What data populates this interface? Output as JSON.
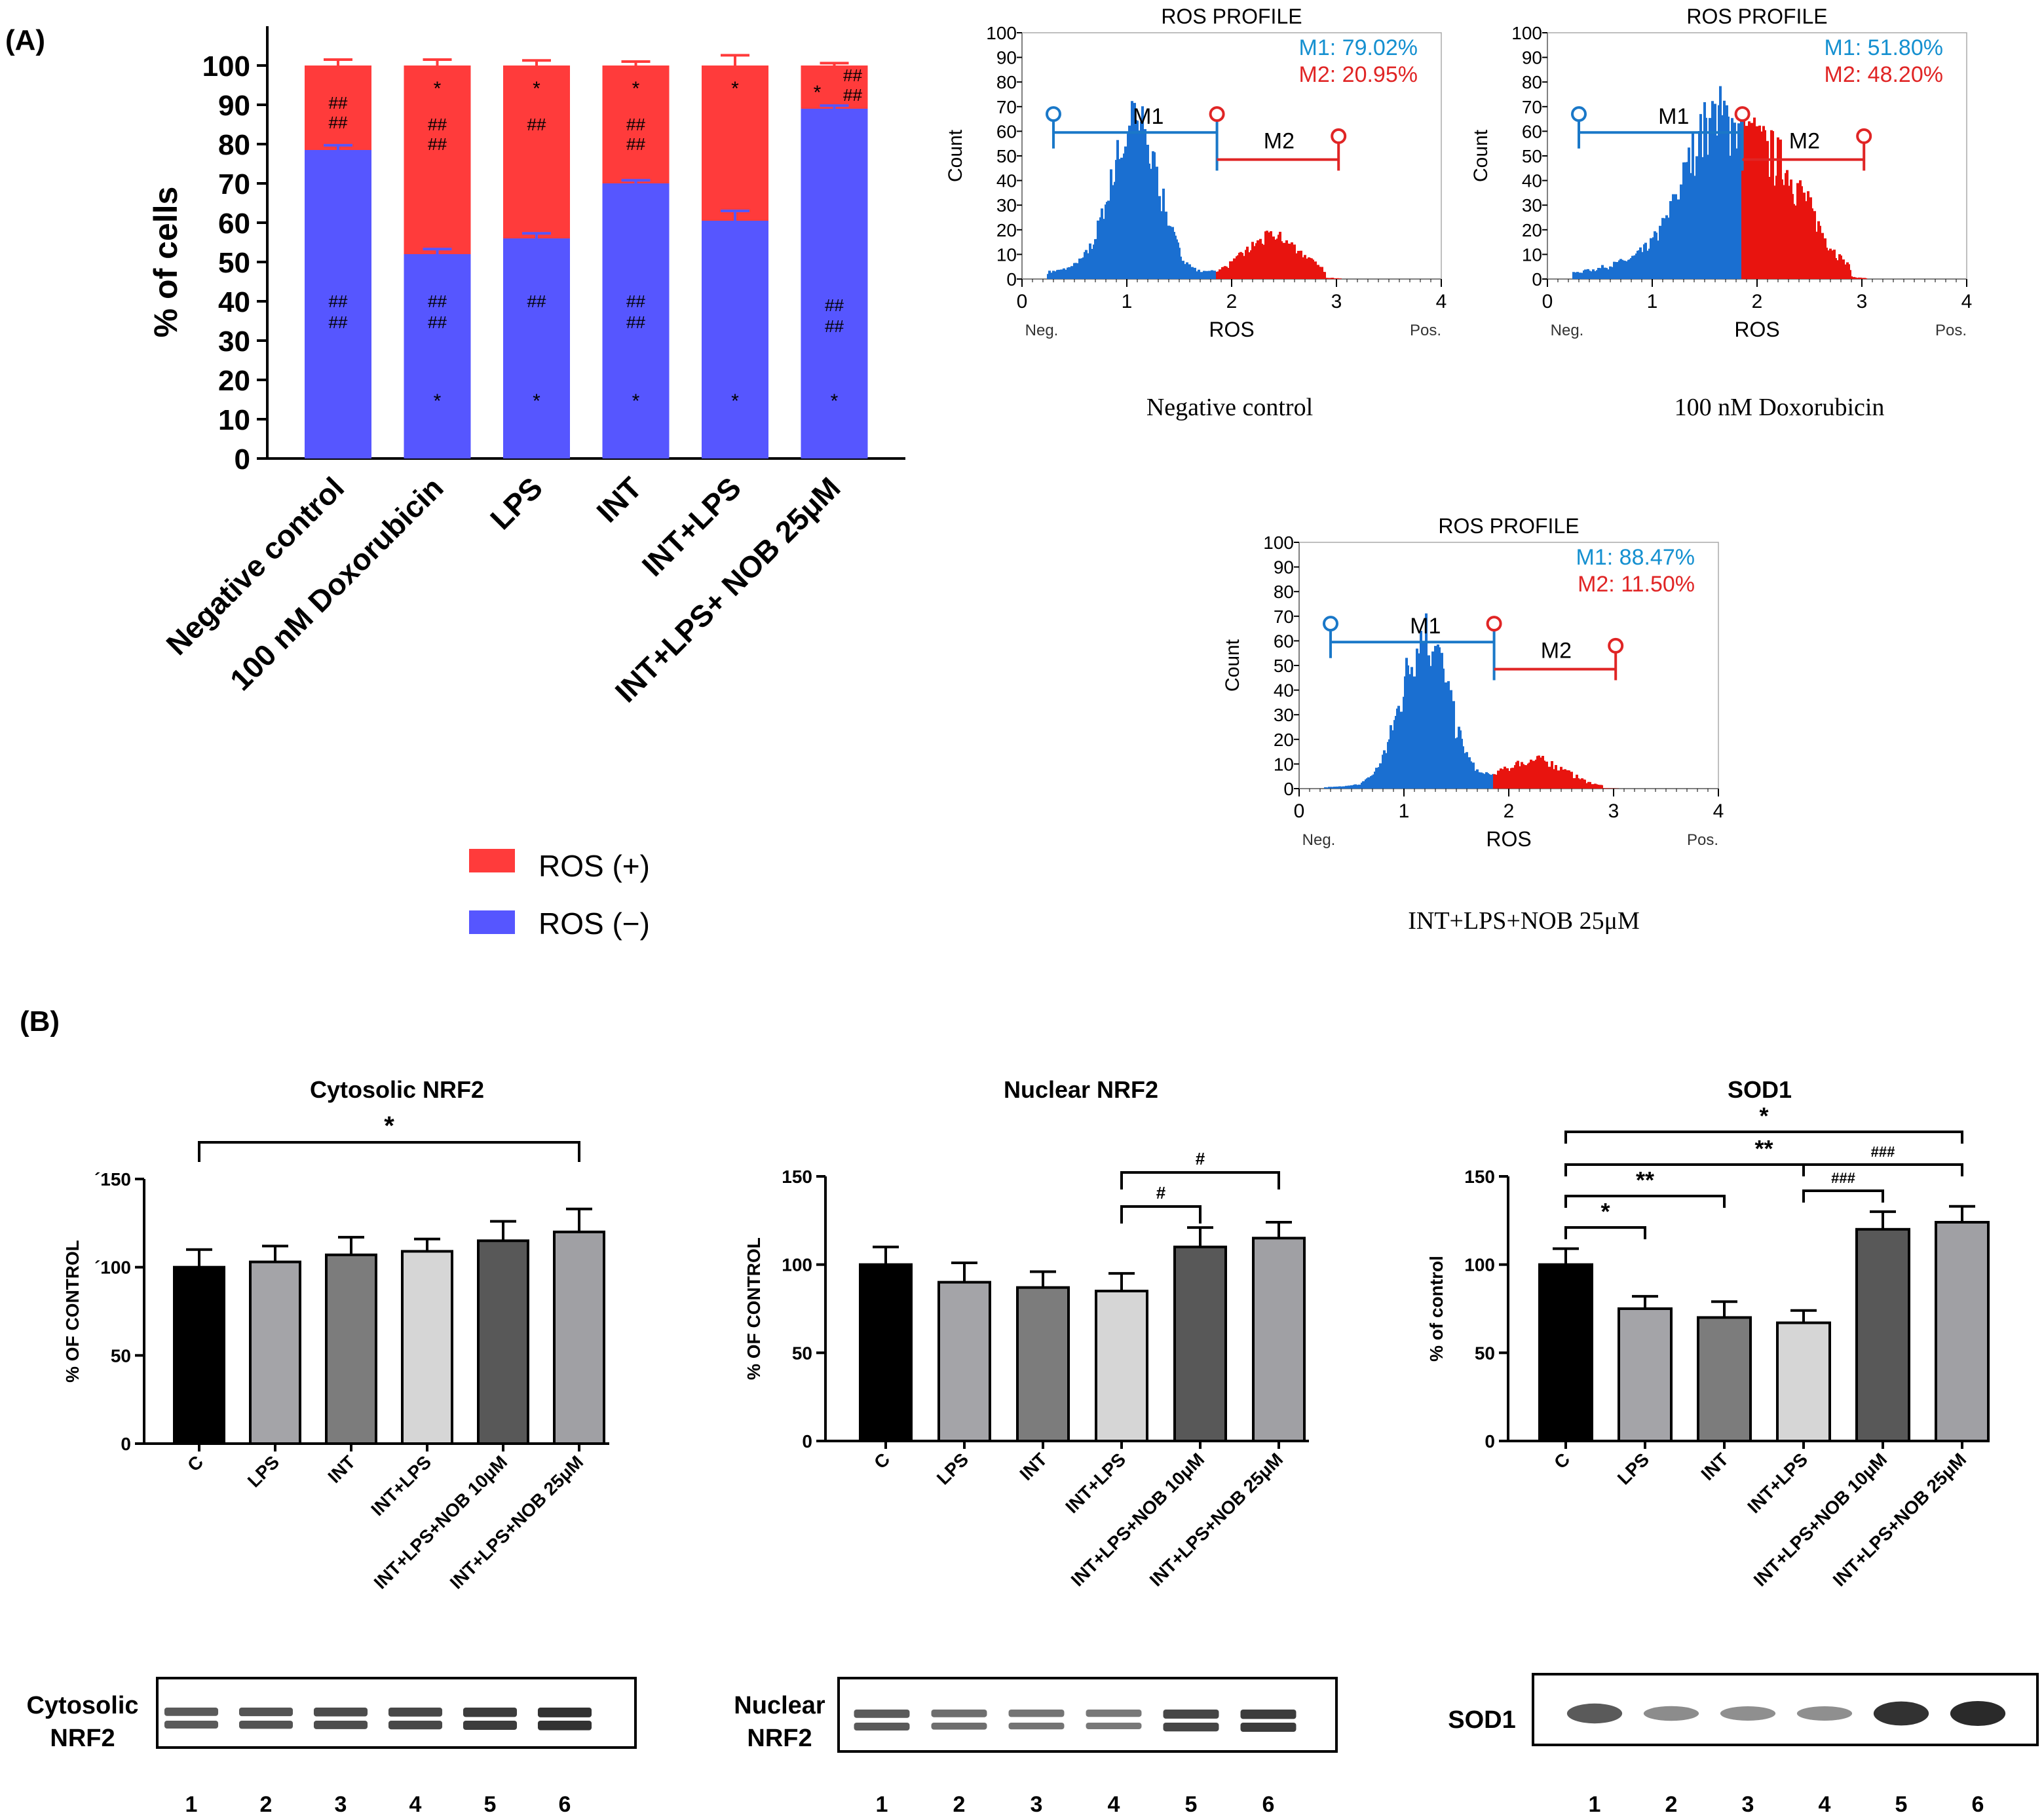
{
  "panel_a": {
    "label": "(A)",
    "stacked": {
      "ylabel": "% of cells",
      "yticks": [
        "0",
        "10",
        "20",
        "30",
        "40",
        "50",
        "60",
        "70",
        "80",
        "90",
        "100"
      ],
      "categories": [
        "Negative control",
        "100 nM Doxorubicin",
        "LPS",
        "INT",
        "INT+LPS",
        "INT+LPS+ NOB 25μM"
      ],
      "negative": [
        78.5,
        52,
        56,
        70,
        60.5,
        89
      ],
      "negative_err": [
        1.2,
        1.3,
        1.3,
        0.8,
        2.5,
        0.8
      ],
      "positive_err": [
        1.5,
        1.5,
        1.3,
        1.0,
        2.6,
        0.6
      ],
      "ann_pos_top": [
        "",
        "*",
        "*",
        "*",
        "*",
        "*"
      ],
      "ann_pos_hash": [
        [
          "##",
          "##"
        ],
        [
          "##",
          "##"
        ],
        [
          "##"
        ],
        [
          "##",
          "##"
        ],
        [],
        [
          "##",
          "##"
        ]
      ],
      "ann_neg_hash": [
        [
          "##",
          "##"
        ],
        [
          "##",
          "##"
        ],
        [
          "##"
        ],
        [
          "##",
          "##"
        ],
        [],
        [
          "##",
          "##"
        ]
      ],
      "ann_neg_bottom": [
        "",
        "*",
        "*",
        "*",
        "*",
        "*"
      ],
      "legend": [
        {
          "label": "ROS (+)",
          "color": "#ff3b3b"
        },
        {
          "label": "ROS (−)",
          "color": "#5656ff"
        }
      ]
    },
    "histograms": [
      {
        "title": "ROS PROFILE",
        "m1": "M1: 79.02%",
        "m2": "M2: 20.95%",
        "caption": "Negative control",
        "xticks": [
          "0",
          "1",
          "2",
          "3",
          "4"
        ],
        "yticks": [
          "0",
          "10",
          "20",
          "30",
          "40",
          "50",
          "60",
          "70",
          "80",
          "90",
          "100"
        ],
        "ylabel": "Count",
        "xlabel": "ROS",
        "neg": "Neg.",
        "pos": "Pos.",
        "gate1": "M1",
        "gate2": "M2"
      },
      {
        "title": "ROS PROFILE",
        "m1": "M1: 51.80%",
        "m2": "M2: 48.20%",
        "caption": "100 nM Doxorubicin",
        "xticks": [
          "0",
          "1",
          "2",
          "3",
          "4"
        ],
        "yticks": [
          "0",
          "10",
          "20",
          "30",
          "40",
          "50",
          "60",
          "70",
          "80",
          "90",
          "100"
        ],
        "ylabel": "Count",
        "xlabel": "ROS",
        "neg": "Neg.",
        "pos": "Pos.",
        "gate1": "M1",
        "gate2": "M2"
      },
      {
        "title": "ROS PROFILE",
        "m1": "M1: 88.47%",
        "m2": "M2: 11.50%",
        "caption": "INT+LPS+NOB 25μM",
        "xticks": [
          "0",
          "1",
          "2",
          "3",
          "4"
        ],
        "yticks": [
          "0",
          "10",
          "20",
          "30",
          "40",
          "50",
          "60",
          "70",
          "80",
          "90",
          "100"
        ],
        "ylabel": "Count",
        "xlabel": "ROS",
        "neg": "Neg.",
        "pos": "Pos.",
        "gate1": "M1",
        "gate2": "M2"
      }
    ]
  },
  "panel_b": {
    "label": "(B)",
    "charts": [
      {
        "title": "Cytosolic NRF2",
        "ylabel": "% OF CONTROL",
        "yticks": [
          "0",
          "50",
          "´100",
          "´150"
        ],
        "categories": [
          "C",
          "LPS",
          "INT",
          "INT+LPS",
          "INT+LPS+NOB 10μM",
          "INT+LPS+NOB 25μM"
        ],
        "values": [
          100,
          103,
          107,
          109,
          115,
          120
        ],
        "errors": [
          10,
          9,
          10,
          7,
          11,
          13
        ],
        "sig": [
          "*"
        ],
        "blot_label": [
          "Cytosolic",
          "NRF2"
        ],
        "lanes": [
          "1",
          "2",
          "3",
          "4",
          "5",
          "6"
        ]
      },
      {
        "title": "Nuclear NRF2",
        "ylabel": "% OF CONTROL",
        "yticks": [
          "0",
          "50",
          "100",
          "150"
        ],
        "categories": [
          "C",
          "LPS",
          "INT",
          "INT+LPS",
          "INT+LPS+NOB 10μM",
          "INT+LPS+NOB 25μM"
        ],
        "values": [
          100,
          90,
          87,
          85,
          110,
          115
        ],
        "errors": [
          10,
          11,
          9,
          10,
          11,
          9
        ],
        "sig": [
          "#",
          "#"
        ],
        "blot_label": [
          "Nuclear",
          "NRF2"
        ],
        "lanes": [
          "1",
          "2",
          "3",
          "4",
          "5",
          "6"
        ]
      },
      {
        "title": "SOD1",
        "ylabel": "% of control",
        "yticks": [
          "0",
          "50",
          "100",
          "150"
        ],
        "categories": [
          "C",
          "LPS",
          "INT",
          "INT+LPS",
          "INT+LPS+NOB 10μM",
          "INT+LPS+NOB 25μM"
        ],
        "values": [
          100,
          75,
          70,
          67,
          120,
          124
        ],
        "errors": [
          9,
          7,
          9,
          7,
          10,
          9
        ],
        "sig": [
          "*",
          "**",
          "###",
          "**",
          "###",
          "*"
        ],
        "blot_label": [
          "SOD1"
        ],
        "lanes": [
          "1",
          "2",
          "3",
          "4",
          "5",
          "6"
        ]
      }
    ]
  },
  "colors": {
    "pos": "#ff3b3b",
    "neg": "#5656ff",
    "hist_blue": "#1a6fd1",
    "hist_red": "#e8140f",
    "gate_blue": "#1a78c8",
    "gate_red": "#e02525",
    "m1_text": "#1590d0",
    "m2_text": "#e02525",
    "bars": [
      "#000000",
      "#a4a4a8",
      "#7c7c7c",
      "#d6d6d6",
      "#585858",
      "#a0a0a4"
    ]
  }
}
